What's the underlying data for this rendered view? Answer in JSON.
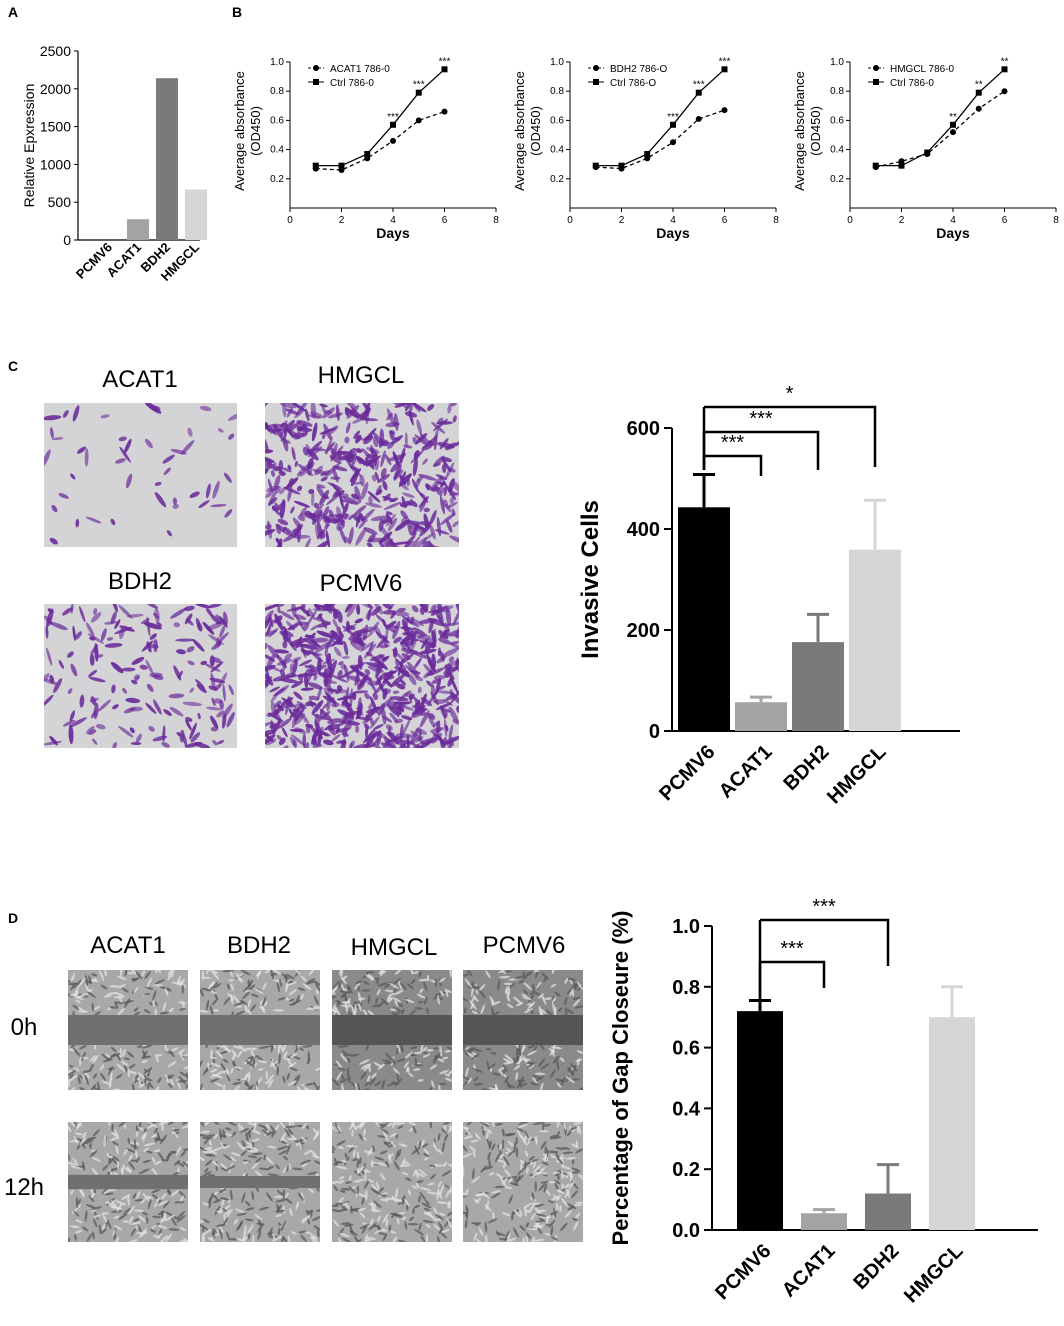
{
  "panels": {
    "a": "A",
    "b": "B",
    "c": "C",
    "d": "D"
  },
  "invasion_images": {
    "labels": [
      "ACAT1",
      "HMGCL",
      "BDH2",
      "PCMV6"
    ]
  },
  "migration_images": {
    "columns": [
      "ACAT1",
      "BDH2",
      "HMGCL",
      "PCMV6"
    ],
    "rows": [
      "0h",
      "12h"
    ]
  },
  "colors": {
    "pcmv6": "#000000",
    "acat1": "#a3a3a3",
    "bdh2": "#7a7a7a",
    "hmgcl": "#d6d6d6",
    "stain": "#6a2a9a",
    "field_bg": "#d4d4d6",
    "scratch_bg": "#9c9c9c"
  },
  "chart_data": [
    {
      "id": "A",
      "type": "bar",
      "categories": [
        "PCMV6",
        "ACAT1",
        "BDH2",
        "HMGCL"
      ],
      "values": [
        5,
        275,
        2140,
        670
      ],
      "ylabel": "Relative Epxression",
      "ylim": [
        0,
        2500
      ],
      "yticks": [
        0,
        500,
        1000,
        1500,
        2000,
        2500
      ]
    },
    {
      "id": "B1",
      "type": "line",
      "x": [
        1,
        2,
        3,
        4,
        5,
        6
      ],
      "series": [
        {
          "name": "ACAT1 786-0",
          "values": [
            0.27,
            0.26,
            0.34,
            0.46,
            0.6,
            0.66
          ]
        },
        {
          "name": "Ctrl 786-0",
          "values": [
            0.29,
            0.29,
            0.37,
            0.57,
            0.79,
            0.95
          ]
        }
      ],
      "annotations": [
        "***",
        "***",
        "***"
      ],
      "annotation_x": [
        4,
        5,
        6
      ],
      "xlabel": "Days",
      "ylabel": "Average absorbance (OD450)",
      "xlim": [
        0,
        8
      ],
      "ylim": [
        0,
        1.0
      ],
      "xticks": [
        0,
        2,
        4,
        6,
        8
      ],
      "yticks": [
        0.2,
        0.4,
        0.6,
        0.8,
        1.0
      ],
      "legend": "top-left"
    },
    {
      "id": "B2",
      "type": "line",
      "x": [
        1,
        2,
        3,
        4,
        5,
        6
      ],
      "series": [
        {
          "name": "BDH2 786-O",
          "values": [
            0.28,
            0.27,
            0.34,
            0.45,
            0.61,
            0.67
          ]
        },
        {
          "name": "Ctrl 786-O",
          "values": [
            0.29,
            0.29,
            0.37,
            0.57,
            0.79,
            0.95
          ]
        }
      ],
      "annotations": [
        "***",
        "***",
        "***"
      ],
      "annotation_x": [
        4,
        5,
        6
      ],
      "xlabel": "Days",
      "ylabel": "Average absorbance (OD450)",
      "xlim": [
        0,
        8
      ],
      "ylim": [
        0,
        1.0
      ],
      "xticks": [
        0,
        2,
        4,
        6,
        8
      ],
      "yticks": [
        0.2,
        0.4,
        0.6,
        0.8,
        1.0
      ],
      "legend": "top-left"
    },
    {
      "id": "B3",
      "type": "line",
      "x": [
        1,
        2,
        3,
        4,
        5,
        6
      ],
      "series": [
        {
          "name": "HMGCL 786-0",
          "values": [
            0.28,
            0.32,
            0.37,
            0.52,
            0.68,
            0.8
          ]
        },
        {
          "name": "Ctrl 786-0",
          "values": [
            0.29,
            0.29,
            0.38,
            0.57,
            0.79,
            0.95
          ]
        }
      ],
      "annotations": [
        "**",
        "**",
        "**"
      ],
      "annotation_x": [
        4,
        5,
        6
      ],
      "xlabel": "Days",
      "ylabel": "Average absorbance (OD450)",
      "xlim": [
        0,
        8
      ],
      "ylim": [
        0,
        1.0
      ],
      "xticks": [
        0,
        2,
        4,
        6,
        8
      ],
      "yticks": [
        0.2,
        0.4,
        0.6,
        0.8,
        1.0
      ],
      "legend": "top-left"
    },
    {
      "id": "C",
      "type": "bar",
      "categories": [
        "PCMV6",
        "ACAT1",
        "BDH2",
        "HMGCL"
      ],
      "values": [
        443,
        57,
        176,
        359
      ],
      "errors": [
        65,
        10,
        55,
        98
      ],
      "ylabel": "Invasive Cells",
      "ylim": [
        0,
        600
      ],
      "yticks": [
        0,
        200,
        400,
        600
      ],
      "significance": [
        {
          "from": "PCMV6",
          "to": "ACAT1",
          "label": "***"
        },
        {
          "from": "PCMV6",
          "to": "BDH2",
          "label": "***"
        },
        {
          "from": "PCMV6",
          "to": "HMGCL",
          "label": "*"
        }
      ]
    },
    {
      "id": "D",
      "type": "bar",
      "categories": [
        "PCMV6",
        "ACAT1",
        "BDH2",
        "HMGCL"
      ],
      "values": [
        0.72,
        0.055,
        0.12,
        0.7
      ],
      "errors": [
        0.035,
        0.012,
        0.095,
        0.1
      ],
      "ylabel": "Percentage of Gap Closeure (%)",
      "ylim": [
        0,
        1.0
      ],
      "yticks": [
        0.0,
        0.2,
        0.4,
        0.6,
        0.8,
        1.0
      ],
      "significance": [
        {
          "from": "PCMV6",
          "to": "ACAT1",
          "label": "***"
        },
        {
          "from": "PCMV6",
          "to": "BDH2",
          "label": "***"
        }
      ]
    }
  ]
}
